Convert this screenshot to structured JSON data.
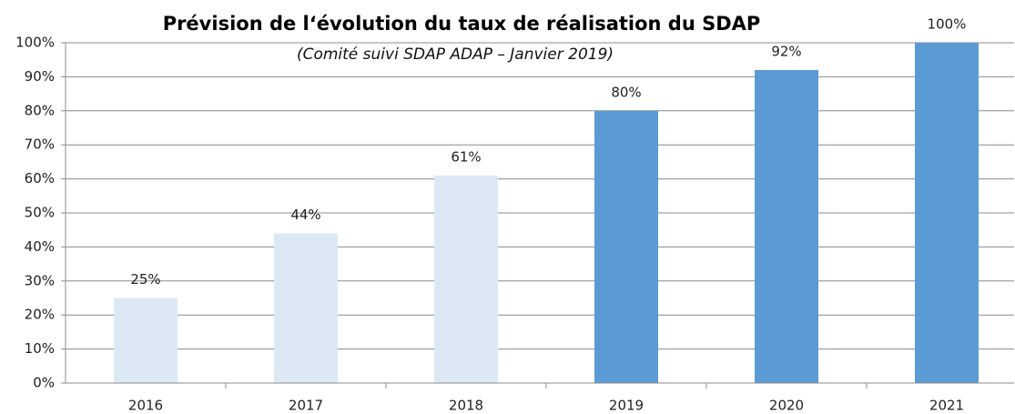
{
  "chart_data": {
    "type": "bar",
    "title": "Prévision de l‘évolution du taux de réalisation du SDAP",
    "subtitle": "(Comité suivi SDAP ADAP – Janvier 2019)",
    "categories": [
      "2016",
      "2017",
      "2018",
      "2019",
      "2020",
      "2021"
    ],
    "values": [
      25,
      44,
      61,
      80,
      92,
      100
    ],
    "value_labels": [
      "25%",
      "44%",
      "61%",
      "80%",
      "92%",
      "100%"
    ],
    "colors": [
      "#dce9f5",
      "#dce9f5",
      "#dce9f5",
      "#5b9bd5",
      "#5b9bd5",
      "#5b9bd5"
    ],
    "ylim": [
      0,
      100
    ],
    "yticks": [
      {
        "value": 0,
        "label": "0%"
      },
      {
        "value": 10,
        "label": "10%"
      },
      {
        "value": 20,
        "label": "20%"
      },
      {
        "value": 30,
        "label": "30%"
      },
      {
        "value": 40,
        "label": "40%"
      },
      {
        "value": 50,
        "label": "50%"
      },
      {
        "value": 60,
        "label": "60%"
      },
      {
        "value": 70,
        "label": "70%"
      },
      {
        "value": 80,
        "label": "80%"
      },
      {
        "value": 90,
        "label": "90%"
      },
      {
        "value": 100,
        "label": "100%"
      }
    ],
    "grid": true
  }
}
